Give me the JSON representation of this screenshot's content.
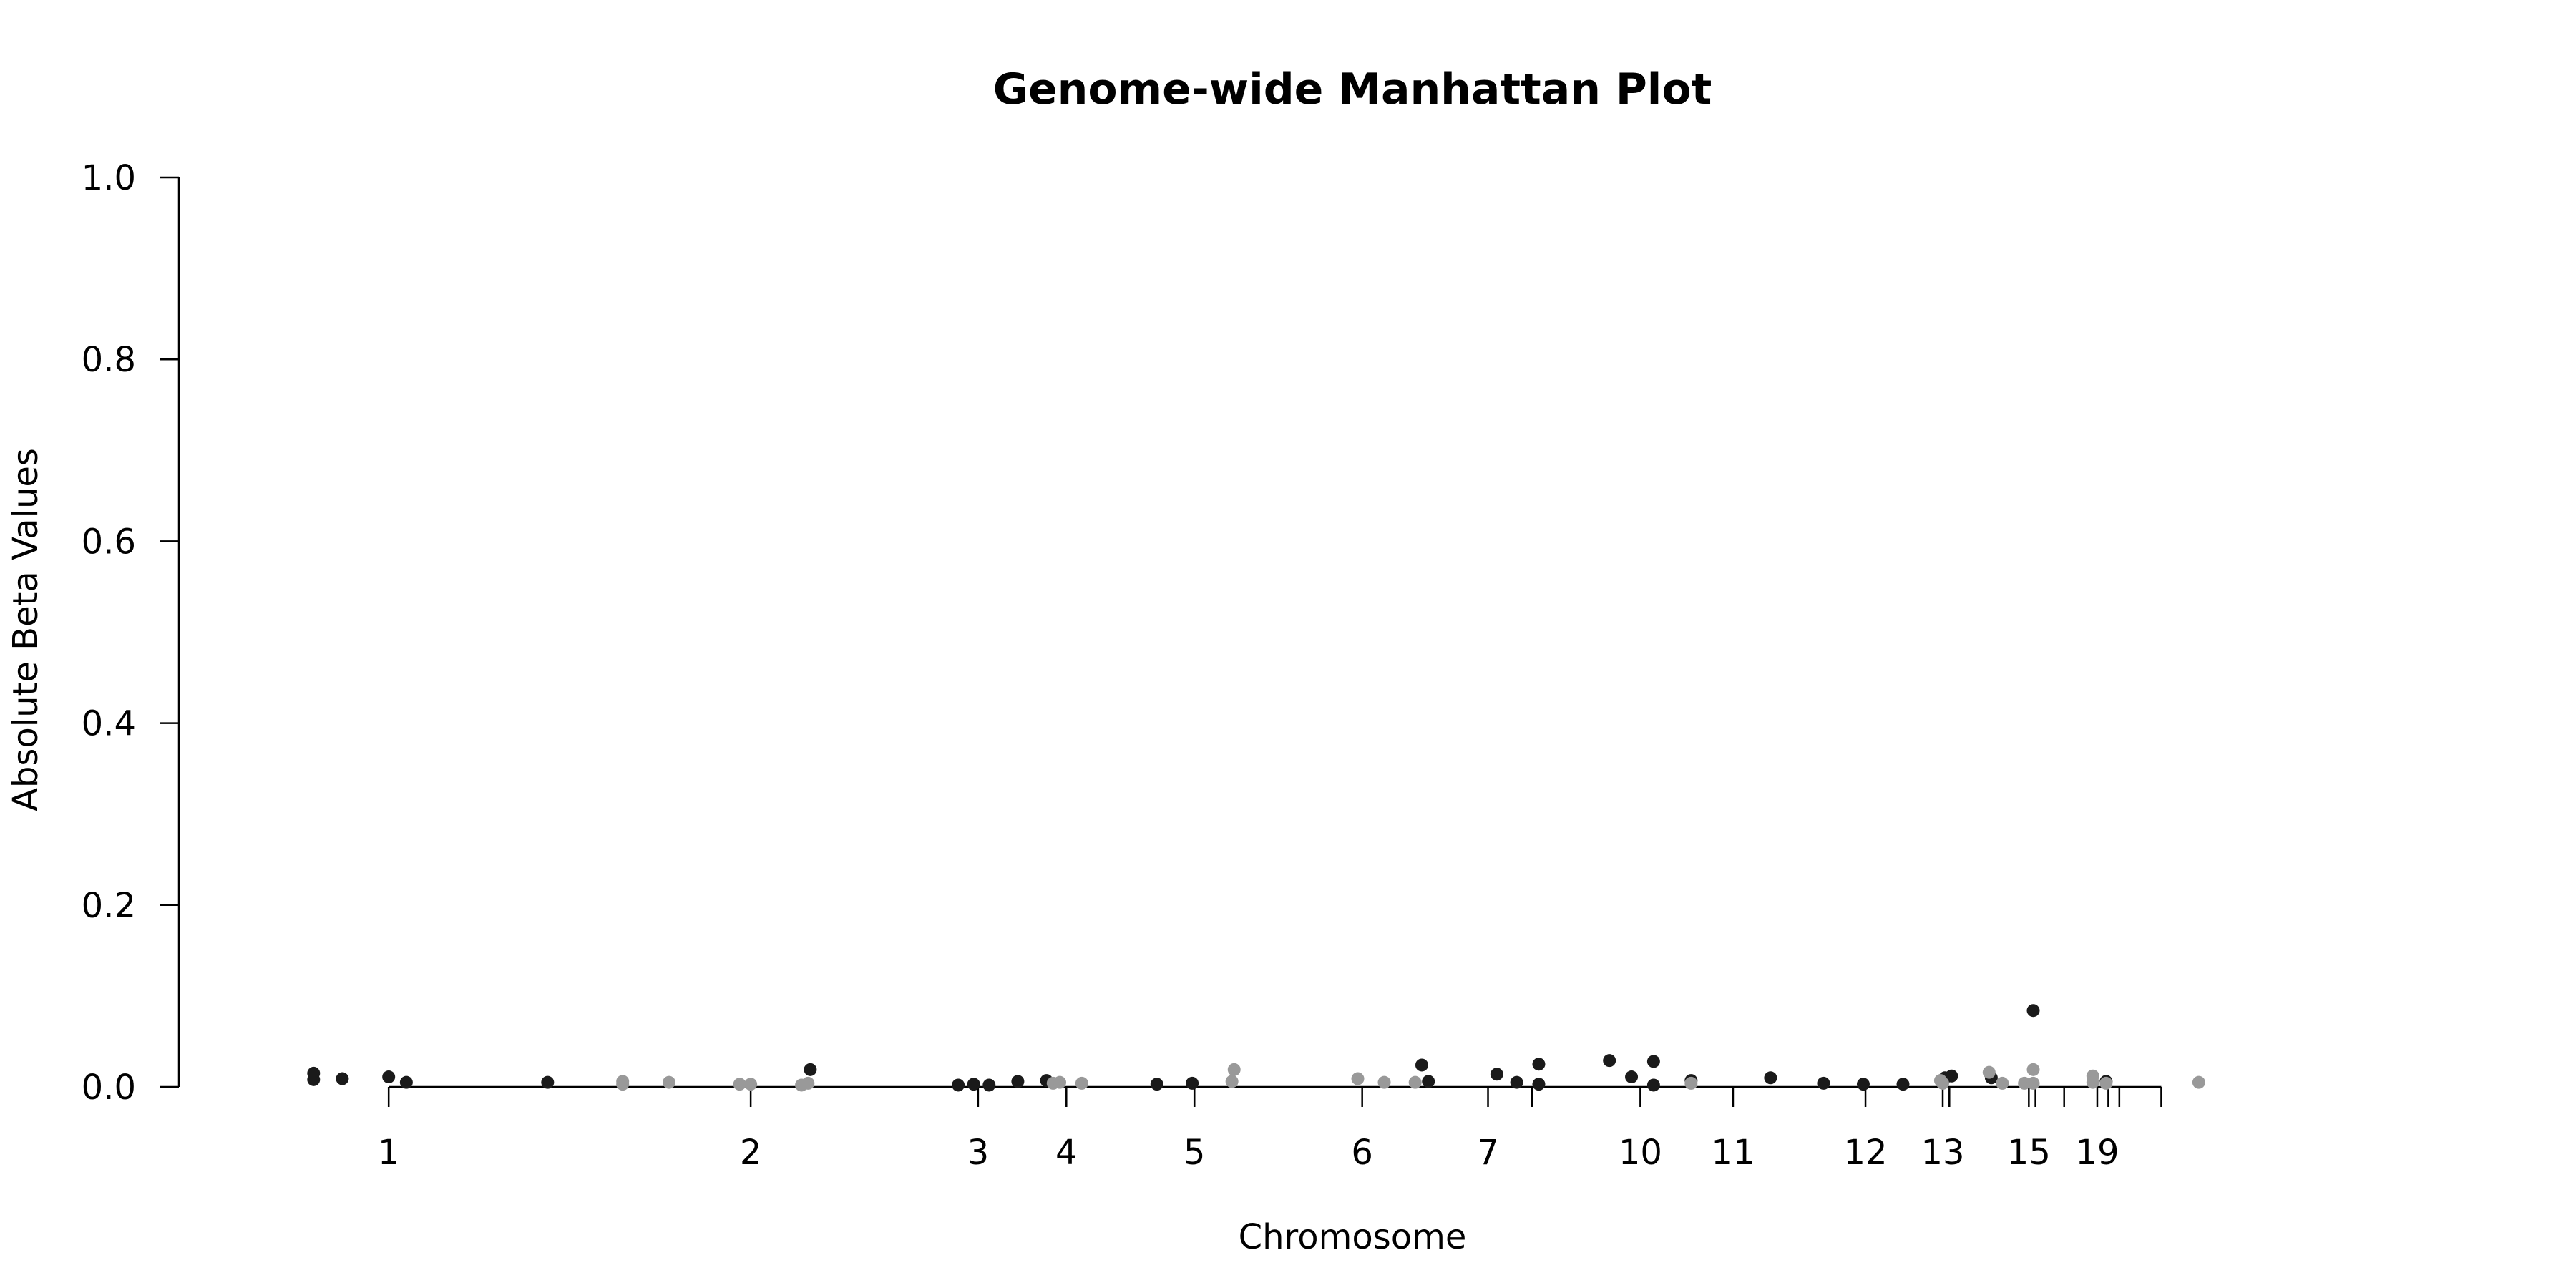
{
  "chart_data": {
    "type": "scatter",
    "title": "Genome-wide Manhattan Plot",
    "xlabel": "Chromosome",
    "ylabel": "Absolute Beta Values",
    "ylim": [
      0,
      1
    ],
    "yticks": [
      "0.0",
      "0.2",
      "0.4",
      "0.6",
      "0.8",
      "1.0"
    ],
    "ytick_values": [
      0,
      0.2,
      0.4,
      0.6,
      0.8,
      1.0
    ],
    "grid": false,
    "legend": "none",
    "colors": {
      "dark": "#1a1a1a",
      "light": "#999999",
      "axis": "#000000"
    },
    "x_domain": [
      0,
      1000
    ],
    "chromosome_ticks": [
      {
        "pos": 61,
        "label": "1"
      },
      {
        "pos": 225,
        "label": "2"
      },
      {
        "pos": 328,
        "label": "3"
      },
      {
        "pos": 368,
        "label": "4"
      },
      {
        "pos": 426,
        "label": ""
      },
      {
        "pos": 426,
        "label": "5"
      },
      {
        "pos": 502,
        "label": "6"
      },
      {
        "pos": 559,
        "label": "7"
      },
      {
        "pos": 579,
        "label": ""
      },
      {
        "pos": 628,
        "label": "10"
      },
      {
        "pos": 670,
        "label": "11"
      },
      {
        "pos": 730,
        "label": "12"
      },
      {
        "pos": 765,
        "label": "13"
      },
      {
        "pos": 768,
        "label": ""
      },
      {
        "pos": 804,
        "label": "15"
      },
      {
        "pos": 807,
        "label": ""
      },
      {
        "pos": 820,
        "label": ""
      },
      {
        "pos": 835,
        "label": "19"
      },
      {
        "pos": 840,
        "label": ""
      },
      {
        "pos": 845,
        "label": ""
      },
      {
        "pos": 864,
        "label": ""
      }
    ],
    "series": [
      {
        "color": "dark",
        "points": [
          {
            "x": 27,
            "y": 0.015
          },
          {
            "x": 27,
            "y": 0.008
          },
          {
            "x": 40,
            "y": 0.009
          },
          {
            "x": 61,
            "y": 0.011
          },
          {
            "x": 69,
            "y": 0.005
          },
          {
            "x": 133,
            "y": 0.005
          },
          {
            "x": 252,
            "y": 0.019
          },
          {
            "x": 319,
            "y": 0.002
          },
          {
            "x": 326,
            "y": 0.003
          },
          {
            "x": 333,
            "y": 0.002
          },
          {
            "x": 346,
            "y": 0.006
          },
          {
            "x": 359,
            "y": 0.007
          },
          {
            "x": 409,
            "y": 0.003
          },
          {
            "x": 425,
            "y": 0.004
          },
          {
            "x": 529,
            "y": 0.024
          },
          {
            "x": 532,
            "y": 0.006
          },
          {
            "x": 563,
            "y": 0.014
          },
          {
            "x": 572,
            "y": 0.005
          },
          {
            "x": 582,
            "y": 0.025
          },
          {
            "x": 582,
            "y": 0.003
          },
          {
            "x": 614,
            "y": 0.029
          },
          {
            "x": 624,
            "y": 0.011
          },
          {
            "x": 634,
            "y": 0.028
          },
          {
            "x": 634,
            "y": 0.002
          },
          {
            "x": 651,
            "y": 0.007
          },
          {
            "x": 687,
            "y": 0.01
          },
          {
            "x": 711,
            "y": 0.004
          },
          {
            "x": 729,
            "y": 0.003
          },
          {
            "x": 747,
            "y": 0.003
          },
          {
            "x": 766,
            "y": 0.01
          },
          {
            "x": 769,
            "y": 0.012
          },
          {
            "x": 787,
            "y": 0.01
          },
          {
            "x": 806,
            "y": 0.084
          },
          {
            "x": 839,
            "y": 0.006
          }
        ]
      },
      {
        "color": "light",
        "points": [
          {
            "x": 167,
            "y": 0.006
          },
          {
            "x": 167,
            "y": 0.003
          },
          {
            "x": 188,
            "y": 0.005
          },
          {
            "x": 220,
            "y": 0.003
          },
          {
            "x": 225,
            "y": 0.003
          },
          {
            "x": 248,
            "y": 0.002
          },
          {
            "x": 251,
            "y": 0.004
          },
          {
            "x": 362,
            "y": 0.004
          },
          {
            "x": 365,
            "y": 0.005
          },
          {
            "x": 375,
            "y": 0.004
          },
          {
            "x": 443,
            "y": 0.006
          },
          {
            "x": 444,
            "y": 0.019
          },
          {
            "x": 500,
            "y": 0.009
          },
          {
            "x": 512,
            "y": 0.005
          },
          {
            "x": 526,
            "y": 0.005
          },
          {
            "x": 651,
            "y": 0.004
          },
          {
            "x": 764,
            "y": 0.007
          },
          {
            "x": 765,
            "y": 0.004
          },
          {
            "x": 786,
            "y": 0.016
          },
          {
            "x": 792,
            "y": 0.004
          },
          {
            "x": 802,
            "y": 0.004
          },
          {
            "x": 806,
            "y": 0.019
          },
          {
            "x": 806,
            "y": 0.004
          },
          {
            "x": 833,
            "y": 0.012
          },
          {
            "x": 833,
            "y": 0.005
          },
          {
            "x": 839,
            "y": 0.004
          },
          {
            "x": 881,
            "y": 0.005
          }
        ]
      }
    ]
  }
}
